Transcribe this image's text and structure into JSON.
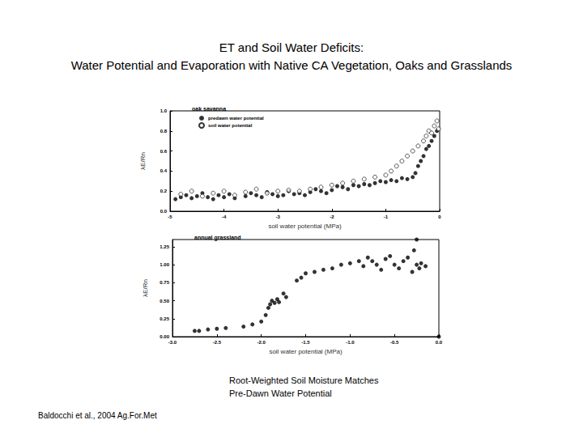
{
  "title": [
    "ET and Soil Water Deficits:",
    "Water Potential and Evaporation with Native CA Vegetation, Oaks and Grasslands"
  ],
  "caption": [
    "Root-Weighted Soil Moisture Matches",
    "Pre-Dawn Water Potential"
  ],
  "source": "Baldocchi et al., 2004 Ag.For.Met",
  "chart_data": [
    {
      "type": "scatter",
      "title": "oak savanna",
      "x_label": "soil water potential (MPa)",
      "y_label": "λE/Rn",
      "xlim": [
        -5,
        0
      ],
      "xticks": [
        -5,
        -4,
        -3,
        -2,
        -1,
        0
      ],
      "ylim": [
        0,
        1
      ],
      "yticks": [
        {
          "value": 0,
          "label": "0.0"
        },
        0.2,
        0.4,
        0.6,
        0.8,
        {
          "value": 1,
          "label": "1.0"
        }
      ],
      "legend": "upper left",
      "grid": false,
      "series": [
        {
          "name": "predawn water potential",
          "color": "#000000",
          "marker": "circle",
          "x": [
            -4.9,
            -4.8,
            -4.7,
            -4.6,
            -4.5,
            -4.4,
            -4.3,
            -4.2,
            -4.1,
            -4.0,
            -3.9,
            -3.8,
            -3.6,
            -3.5,
            -3.4,
            -3.3,
            -3.2,
            -3.1,
            -3.0,
            -2.9,
            -2.8,
            -2.7,
            -2.6,
            -2.5,
            -2.4,
            -2.3,
            -2.2,
            -2.1,
            -2.0,
            -1.9,
            -1.8,
            -1.7,
            -1.6,
            -1.5,
            -1.4,
            -1.3,
            -1.2,
            -1.1,
            -1.0,
            -0.9,
            -0.8,
            -0.7,
            -0.6,
            -0.5,
            -0.45,
            -0.4,
            -0.35,
            -0.3,
            -0.25,
            -0.2,
            -0.15,
            -0.1,
            -0.05
          ],
          "values": [
            0.12,
            0.14,
            0.16,
            0.13,
            0.15,
            0.18,
            0.14,
            0.12,
            0.16,
            0.14,
            0.17,
            0.13,
            0.15,
            0.18,
            0.16,
            0.14,
            0.19,
            0.17,
            0.15,
            0.16,
            0.2,
            0.17,
            0.18,
            0.16,
            0.19,
            0.22,
            0.2,
            0.18,
            0.21,
            0.25,
            0.24,
            0.22,
            0.26,
            0.25,
            0.27,
            0.26,
            0.28,
            0.3,
            0.29,
            0.31,
            0.3,
            0.33,
            0.32,
            0.34,
            0.38,
            0.45,
            0.5,
            0.55,
            0.62,
            0.65,
            0.7,
            0.75,
            0.8
          ]
        },
        {
          "name": "soil water potential",
          "color": "#000000",
          "marker": "open_circle",
          "x": [
            -4.8,
            -4.6,
            -4.4,
            -4.2,
            -4.0,
            -3.8,
            -3.6,
            -3.4,
            -3.2,
            -3.0,
            -2.8,
            -2.6,
            -2.4,
            -2.2,
            -2.0,
            -1.8,
            -1.6,
            -1.4,
            -1.2,
            -1.0,
            -0.9,
            -0.8,
            -0.7,
            -0.6,
            -0.5,
            -0.4,
            -0.3,
            -0.25,
            -0.2,
            -0.15,
            -0.1,
            -0.05,
            -0.02
          ],
          "values": [
            0.17,
            0.2,
            0.15,
            0.18,
            0.2,
            0.16,
            0.19,
            0.22,
            0.18,
            0.2,
            0.21,
            0.2,
            0.22,
            0.24,
            0.26,
            0.28,
            0.3,
            0.32,
            0.34,
            0.36,
            0.4,
            0.45,
            0.5,
            0.55,
            0.6,
            0.65,
            0.7,
            0.75,
            0.8,
            0.78,
            0.85,
            0.9,
            0.82
          ]
        }
      ]
    },
    {
      "type": "scatter",
      "title": "annual grassland",
      "x_label": "soil water potential (MPa)",
      "y_label": "λE/Rn",
      "xlim": [
        -3,
        0
      ],
      "xticks": [
        {
          "value": -3,
          "label": "-3.0"
        },
        -2.5,
        {
          "value": -2,
          "label": "-2.0"
        },
        -1.5,
        {
          "value": -1,
          "label": "-1.0"
        },
        -0.5,
        {
          "value": 0,
          "label": "0.0"
        }
      ],
      "ylim": [
        0,
        1.35
      ],
      "yticks": [
        {
          "value": 0,
          "label": "0.00"
        },
        {
          "value": 0.25,
          "label": "0.25"
        },
        {
          "value": 0.5,
          "label": "0.50"
        },
        {
          "value": 0.75,
          "label": "0.75"
        },
        {
          "value": 1,
          "label": "1.00"
        },
        {
          "value": 1.25,
          "label": "1.25"
        }
      ],
      "grid": false,
      "series": [
        {
          "color": "#000000",
          "marker": "circle",
          "x": [
            -2.75,
            -2.7,
            -2.6,
            -2.5,
            -2.4,
            -2.2,
            -2.1,
            -2.0,
            -1.95,
            -1.92,
            -1.9,
            -1.88,
            -1.85,
            -1.82,
            -1.8,
            -1.75,
            -1.72,
            -1.6,
            -1.55,
            -1.5,
            -1.4,
            -1.3,
            -1.2,
            -1.1,
            -1.0,
            -0.9,
            -0.85,
            -0.8,
            -0.75,
            -0.7,
            -0.65,
            -0.6,
            -0.55,
            -0.5,
            -0.45,
            -0.4,
            -0.35,
            -0.3,
            -0.28,
            -0.25,
            -0.22,
            -0.2,
            -0.15,
            -0.25,
            0
          ],
          "values": [
            0.08,
            0.08,
            0.1,
            0.11,
            0.12,
            0.14,
            0.17,
            0.21,
            0.3,
            0.4,
            0.45,
            0.5,
            0.47,
            0.52,
            0.48,
            0.6,
            0.55,
            0.78,
            0.82,
            0.88,
            0.9,
            0.93,
            0.95,
            1.0,
            1.02,
            1.05,
            0.98,
            1.1,
            1.05,
            1.0,
            0.93,
            1.08,
            1.12,
            1.0,
            0.95,
            1.05,
            1.1,
            0.9,
            1.2,
            1.0,
            0.95,
            1.02,
            0.98,
            1.35,
            0
          ]
        }
      ]
    }
  ]
}
